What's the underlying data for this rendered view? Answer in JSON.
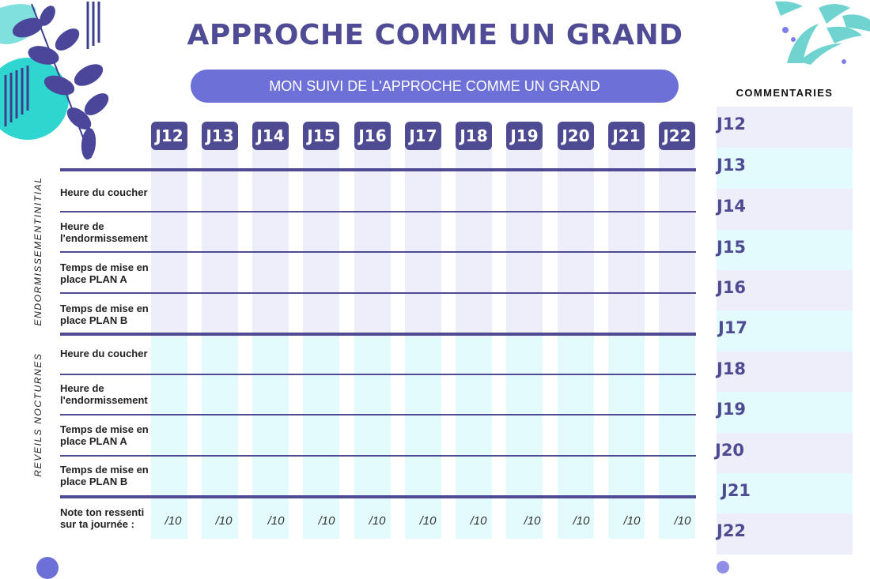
{
  "title": "APPROCHE COMME UN GRAND",
  "subtitle": "MON SUIVI DE L'APPROCHE COMME UN GRAND",
  "days": [
    "J12",
    "J13",
    "J14",
    "J15",
    "J16",
    "J17",
    "J18",
    "J19",
    "J20",
    "J21",
    "J22"
  ],
  "sections": {
    "initial": "ENDORMISSEMENTINITIAL",
    "night": "REVEILS NOCTURNES"
  },
  "rows": {
    "r1": "Heure du coucher",
    "r2": "Heure de l'endormissement",
    "r3": "Temps de mise en place PLAN A",
    "r4": "Temps de mise en place PLAN B",
    "r5": "Heure du coucher",
    "r6": "Heure de l'endormissement",
    "r7": "Temps de mise en place PLAN A",
    "r8": "Temps de mise en place PLAN B",
    "r9": "Note ton ressenti sur ta journée :"
  },
  "score_label": "/10",
  "comments": {
    "title": "COMMENTARIES",
    "items": [
      "J12",
      "J13",
      "J14",
      "J15",
      "J16",
      "J17",
      "J18",
      "J19",
      "J20",
      "J21",
      "J22"
    ]
  },
  "colors": {
    "primary": "#4e4b93",
    "accent": "#6d70d6",
    "lavender": "#eeeefb",
    "mint": "#e3fbfc",
    "teal": "#6fd3cf"
  }
}
